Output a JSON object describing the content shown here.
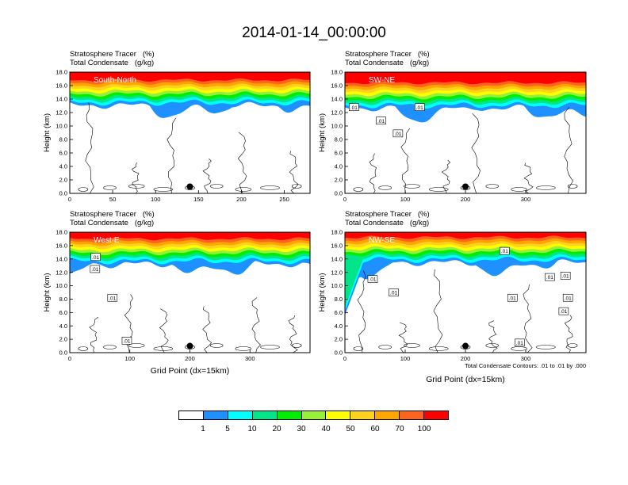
{
  "title": "2014-01-14_00:00:00",
  "colors": {
    "levels": [
      "#ffffff",
      "#1e90ff",
      "#00ffff",
      "#00e58a",
      "#00ee00",
      "#98f039",
      "#ffff00",
      "#ffd21e",
      "#ffa500",
      "#ff6320",
      "#ff0000"
    ],
    "contour": "#000000"
  },
  "colorbar": {
    "labels": [
      "1",
      "5",
      "10",
      "20",
      "30",
      "40",
      "50",
      "60",
      "70",
      "100"
    ]
  },
  "chart_data": [
    {
      "type": "heatmap",
      "title_lines": [
        "Stratosphere Tracer   (%)",
        "Total Condensate   (g/kg)"
      ],
      "annotation": "South-North",
      "ylabel": "Height (km)",
      "xlabel": "",
      "xlim": [
        0,
        280
      ],
      "ylim": [
        0,
        18
      ],
      "xticks": [
        "0",
        "50",
        "100",
        "150",
        "200",
        "250"
      ],
      "yticks": [
        "0.0",
        "2.0",
        "4.0",
        "6.0",
        "8.0",
        "10.0",
        "12.0",
        "14.0",
        "16.0",
        "18.0"
      ],
      "marker_x": 140,
      "marker_y": 1.0,
      "contour_labels": [],
      "contour_note": ""
    },
    {
      "type": "heatmap",
      "title_lines": [
        "Stratosphere Tracer   (%)",
        "Total Condensate   (g/kg)"
      ],
      "annotation": "SW-NE",
      "ylabel": "Height (km)",
      "xlabel": "",
      "xlim": [
        0,
        400
      ],
      "ylim": [
        0,
        18
      ],
      "xticks": [
        "0",
        "100",
        "200",
        "300"
      ],
      "yticks": [
        "0.0",
        "2.0",
        "4.0",
        "6.0",
        "8.0",
        "10.0",
        "12.0",
        "14.0",
        "16.0",
        "18.0"
      ],
      "marker_x": 200,
      "marker_y": 1.0,
      "contour_labels": [
        {
          "text": ".01",
          "x": 15,
          "y": 12.8
        },
        {
          "text": ".01",
          "x": 60,
          "y": 10.8
        },
        {
          "text": ".01",
          "x": 88,
          "y": 8.9
        },
        {
          "text": ".01",
          "x": 124,
          "y": 12.8
        }
      ],
      "contour_note": ""
    },
    {
      "type": "heatmap",
      "title_lines": [
        "Stratosphere Tracer   (%)",
        "Total Condensate   (g/kg)"
      ],
      "annotation": "West-E",
      "ylabel": "Height (km)",
      "xlabel": "Grid Point (dx=15km)",
      "xlim": [
        0,
        400
      ],
      "ylim": [
        0,
        18
      ],
      "xticks": [
        "0",
        "100",
        "200",
        "300"
      ],
      "yticks": [
        "0.0",
        "2.0",
        "4.0",
        "6.0",
        "8.0",
        "10.0",
        "12.0",
        "14.0",
        "16.0",
        "18.0"
      ],
      "marker_x": 200,
      "marker_y": 1.0,
      "contour_labels": [
        {
          "text": ".01",
          "x": 43,
          "y": 14.3
        },
        {
          "text": ".01",
          "x": 42,
          "y": 12.5
        },
        {
          "text": ".01",
          "x": 71,
          "y": 8.2
        },
        {
          "text": ".01",
          "x": 95,
          "y": 1.8
        }
      ],
      "contour_note": ""
    },
    {
      "type": "heatmap",
      "title_lines": [
        "Stratosphere Tracer   (%)",
        "Total Condensate   (g/kg)"
      ],
      "annotation": "NW-SE",
      "ylabel": "Height (km)",
      "xlabel": "Grid Point (dx=15km)",
      "xlim": [
        0,
        400
      ],
      "ylim": [
        0,
        18
      ],
      "xticks": [
        "0",
        "100",
        "200",
        "300"
      ],
      "yticks": [
        "0.0",
        "2.0",
        "4.0",
        "6.0",
        "8.0",
        "10.0",
        "12.0",
        "14.0",
        "16.0",
        "18.0"
      ],
      "marker_x": 200,
      "marker_y": 1.0,
      "contour_labels": [
        {
          "text": ".01",
          "x": 46,
          "y": 11.0
        },
        {
          "text": ".01",
          "x": 81,
          "y": 9.0
        },
        {
          "text": ".01",
          "x": 265,
          "y": 15.2
        },
        {
          "text": ".01",
          "x": 278,
          "y": 8.2
        },
        {
          "text": ".01",
          "x": 340,
          "y": 11.3
        },
        {
          "text": ".01",
          "x": 366,
          "y": 11.5
        },
        {
          "text": ".01",
          "x": 370,
          "y": 8.2
        },
        {
          "text": ".01",
          "x": 363,
          "y": 6.2
        },
        {
          "text": ".01",
          "x": 290,
          "y": 1.5
        }
      ],
      "contour_note": "Total Condensate Contours: .01 to .01 by .000"
    }
  ]
}
